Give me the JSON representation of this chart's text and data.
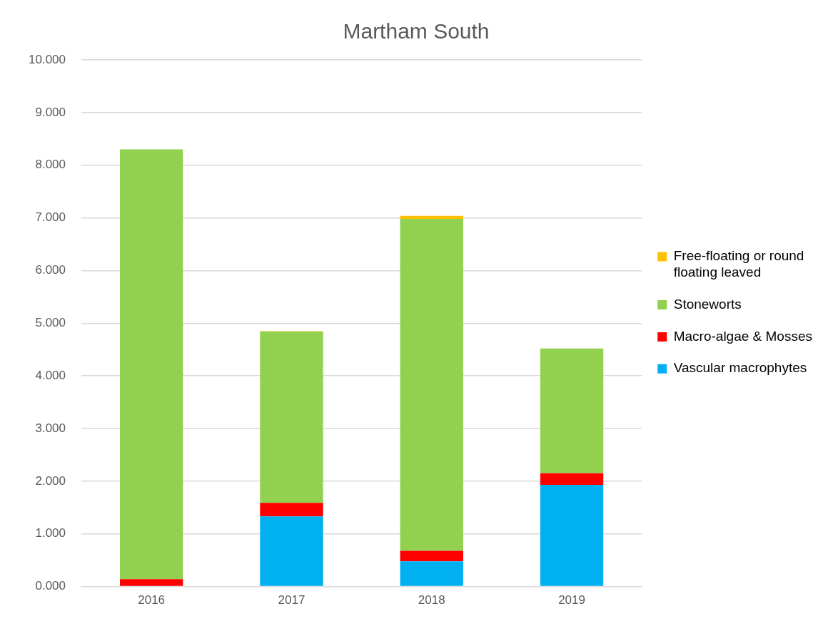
{
  "chart_data": {
    "type": "bar",
    "title": "Martham South",
    "stacked": true,
    "categories": [
      "2016",
      "2017",
      "2018",
      "2019"
    ],
    "series": [
      {
        "name": "Vascular macrophytes",
        "color": "#00b0f0",
        "values": [
          0,
          1.33,
          0.48,
          1.93
        ]
      },
      {
        "name": "Macro-algae & Mosses",
        "color": "#ff0000",
        "values": [
          0.14,
          0.26,
          0.2,
          0.22
        ]
      },
      {
        "name": "Stoneworts",
        "color": "#92d050",
        "values": [
          8.16,
          3.25,
          6.3,
          2.37
        ]
      },
      {
        "name": "Free-floating or round floating leaved",
        "color": "#ffc000",
        "values": [
          0,
          0.01,
          0.06,
          0
        ]
      }
    ],
    "ylim": [
      0,
      10
    ],
    "yticks": [
      {
        "value": 0,
        "label": "0.000"
      },
      {
        "value": 1,
        "label": "1.000"
      },
      {
        "value": 2,
        "label": "2.000"
      },
      {
        "value": 3,
        "label": "3.000"
      },
      {
        "value": 4,
        "label": "4.000"
      },
      {
        "value": 5,
        "label": "5.000"
      },
      {
        "value": 6,
        "label": "6.000"
      },
      {
        "value": 7,
        "label": "7.000"
      },
      {
        "value": 8,
        "label": "8.000"
      },
      {
        "value": 9,
        "label": "9.000"
      },
      {
        "value": 10,
        "label": "10.000"
      }
    ],
    "grid": "y",
    "legend": "right"
  }
}
